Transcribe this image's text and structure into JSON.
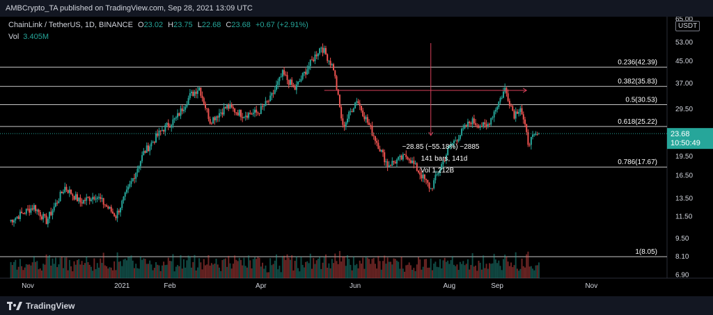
{
  "header": {
    "text": "AMBCrypto_TA published on TradingView.com, Sep 28, 2021 13:09 UTC"
  },
  "legend": {
    "symbol": "ChainLink / TetherUS, 1D, BINANCE",
    "open_label": "O",
    "open": "23.02",
    "high_label": "H",
    "high": "23.75",
    "low_label": "L",
    "low": "22.68",
    "close_label": "C",
    "close": "23.68",
    "change": "+0.67 (+2.91%)",
    "vol_label": "Vol",
    "vol_value": "3.405M"
  },
  "footer": {
    "brand": "TradingView"
  },
  "chart_data": {
    "type": "candlestick",
    "scale": "log",
    "price_unit": "USDT",
    "y_ticks": [
      "65.00",
      "53.00",
      "45.00",
      "37.00",
      "29.50",
      "19.50",
      "16.50",
      "13.50",
      "11.50",
      "9.50",
      "8.10",
      "6.90"
    ],
    "x_ticks": [
      "Nov",
      "2021",
      "Feb",
      "Apr",
      "Jun",
      "Aug",
      "Sep",
      "Nov"
    ],
    "current_price": "23.68",
    "countdown": "10:50:49",
    "fib_levels": [
      {
        "label": "0.236(42.39)",
        "value": 42.39
      },
      {
        "label": "0.382(35.83)",
        "value": 35.83
      },
      {
        "label": "0.5(30.53)",
        "value": 30.53
      },
      {
        "label": "0.618(25.22)",
        "value": 25.22
      },
      {
        "label": "0.786(17.67)",
        "value": 17.67
      },
      {
        "label": "1(8.05)",
        "value": 8.05
      }
    ],
    "measure": {
      "line1": "−28.85 (−55.18%) −2885",
      "line2": "141 bars, 141d",
      "line3": "Vol 1.212B"
    },
    "up_color": "#26a69a",
    "down_color": "#ef5350",
    "keypoints": [
      [
        "2020-10-20",
        11.0
      ],
      [
        "2020-11-05",
        12.5
      ],
      [
        "2020-11-13",
        11.0
      ],
      [
        "2020-11-25",
        14.8
      ],
      [
        "2020-12-05",
        13.0
      ],
      [
        "2020-12-15",
        13.8
      ],
      [
        "2020-12-28",
        11.5
      ],
      [
        "2021-01-05",
        14.5
      ],
      [
        "2021-01-15",
        20.0
      ],
      [
        "2021-01-27",
        24.5
      ],
      [
        "2021-02-05",
        27.0
      ],
      [
        "2021-02-14",
        33.0
      ],
      [
        "2021-02-20",
        35.5
      ],
      [
        "2021-02-27",
        26.5
      ],
      [
        "2021-03-10",
        30.0
      ],
      [
        "2021-03-20",
        28.0
      ],
      [
        "2021-03-30",
        28.5
      ],
      [
        "2021-04-07",
        32.0
      ],
      [
        "2021-04-15",
        40.0
      ],
      [
        "2021-04-23",
        35.0
      ],
      [
        "2021-05-01",
        42.0
      ],
      [
        "2021-05-10",
        51.0
      ],
      [
        "2021-05-18",
        42.0
      ],
      [
        "2021-05-24",
        25.0
      ],
      [
        "2021-06-02",
        32.0
      ],
      [
        "2021-06-12",
        24.0
      ],
      [
        "2021-06-22",
        18.0
      ],
      [
        "2021-07-05",
        19.5
      ],
      [
        "2021-07-20",
        14.6
      ],
      [
        "2021-08-01",
        21.0
      ],
      [
        "2021-08-15",
        26.5
      ],
      [
        "2021-08-25",
        25.0
      ],
      [
        "2021-09-06",
        35.0
      ],
      [
        "2021-09-12",
        28.0
      ],
      [
        "2021-09-16",
        30.0
      ],
      [
        "2021-09-21",
        22.0
      ],
      [
        "2021-09-28",
        23.68
      ]
    ]
  }
}
